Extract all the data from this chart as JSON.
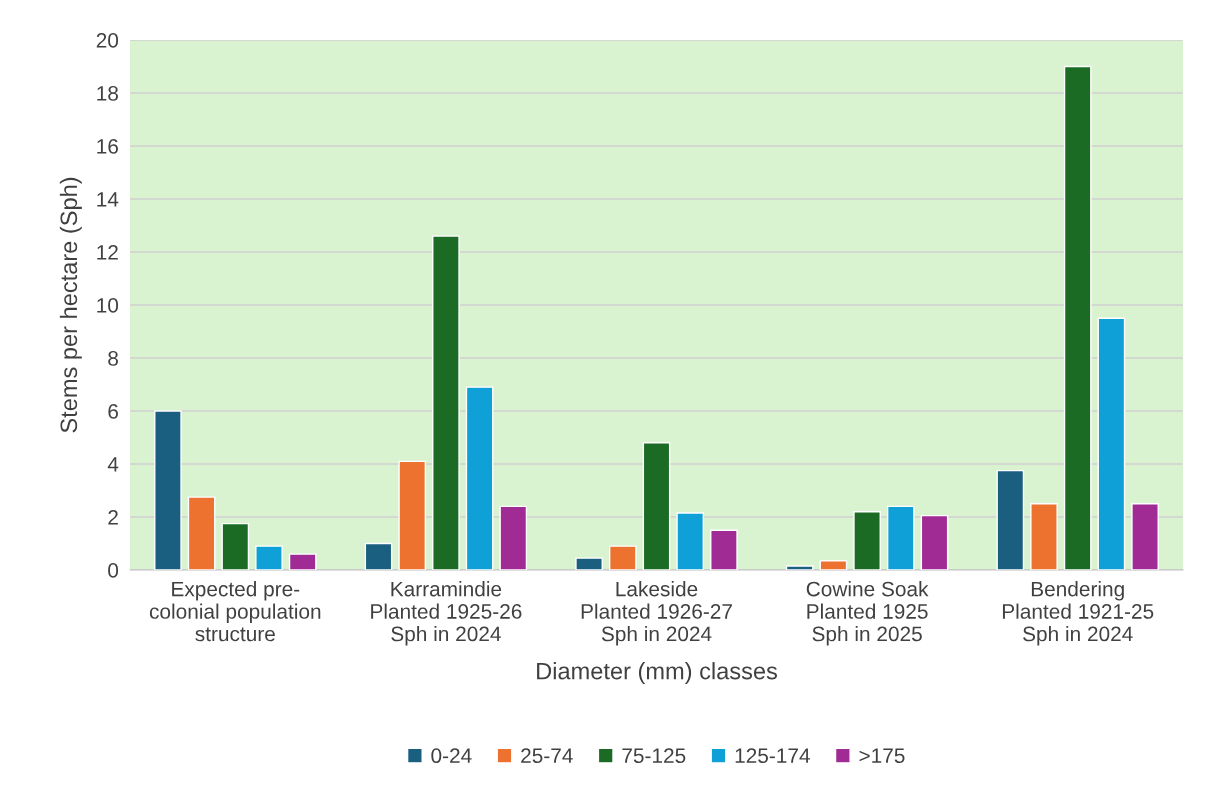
{
  "chart_data": {
    "type": "bar",
    "xlabel": "Diameter (mm) classes",
    "ylabel": "Stems per hectare (Sph)",
    "categories": [
      "Expected pre-\ncolonial population\nstructure",
      "Karramindie\nPlanted 1925-26\nSph in 2024",
      "Lakeside\nPlanted 1926-27\nSph in 2024",
      "Cowine Soak\nPlanted 1925\nSph in 2025",
      "Bendering\nPlanted 1921-25\nSph in 2024"
    ],
    "series": [
      {
        "name": "0-24",
        "color": "#1a5e80",
        "values": [
          6.0,
          1.0,
          0.45,
          0.15,
          3.75
        ]
      },
      {
        "name": "25-74",
        "color": "#ed7230",
        "values": [
          2.75,
          4.1,
          0.9,
          0.35,
          2.5
        ]
      },
      {
        "name": "75-125",
        "color": "#1b6b24",
        "values": [
          1.75,
          12.6,
          4.8,
          2.2,
          19.0
        ]
      },
      {
        "name": "125-174",
        "color": "#10a0d8",
        "values": [
          0.9,
          6.9,
          2.15,
          2.4,
          9.5
        ]
      },
      {
        "name": ">175",
        "color": "#a12b94",
        "values": [
          0.6,
          2.4,
          1.5,
          2.05,
          2.5
        ]
      }
    ],
    "ylim": [
      0,
      20
    ],
    "yticks": [
      0,
      2,
      4,
      6,
      8,
      10,
      12,
      14,
      16,
      18,
      20
    ],
    "grid": "y",
    "legend": "bottom"
  }
}
